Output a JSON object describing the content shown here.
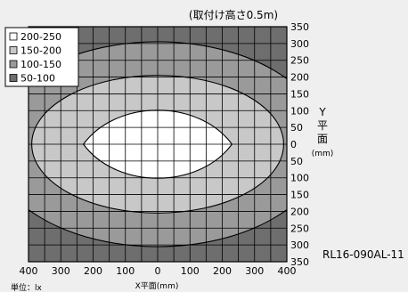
{
  "chart_data": {
    "type": "heatmap",
    "title": "(取付け高さ0.5m)",
    "figure_code": "RL16-090AL-11",
    "unit_label": "単位：lx",
    "xlabel": "X平面(mm)",
    "ylabel": [
      "Y",
      "平",
      "面",
      "(mm)"
    ],
    "x_ticks": [
      "400",
      "300",
      "200",
      "100",
      "0",
      "100",
      "200",
      "300",
      "400"
    ],
    "x_tick_values": [
      -400,
      -300,
      -200,
      -100,
      0,
      100,
      200,
      300,
      400
    ],
    "y_ticks": [
      "350",
      "300",
      "250",
      "200",
      "150",
      "100",
      "50",
      "0",
      "50",
      "100",
      "150",
      "200",
      "250",
      "300",
      "350"
    ],
    "y_tick_values": [
      350,
      300,
      250,
      200,
      150,
      100,
      50,
      0,
      -50,
      -100,
      -150,
      -200,
      -250,
      -300,
      -350
    ],
    "xlim": [
      -400,
      400
    ],
    "ylim": [
      -350,
      350
    ],
    "grid": true,
    "legend_position": "top-left",
    "legend": [
      {
        "label": "200-250",
        "color": "#ffffff"
      },
      {
        "label": "150-200",
        "color": "#c8c8c8"
      },
      {
        "label": "100-150",
        "color": "#9a9a9a"
      },
      {
        "label": "50-100",
        "color": "#6e6e6e"
      }
    ],
    "regions": [
      {
        "range": "50-100",
        "shape": "background",
        "color": "#6e6e6e"
      },
      {
        "range": "100-150",
        "shape": "ellipse",
        "cx": 0,
        "cy": 0,
        "rx": 520,
        "ry": 305,
        "color": "#9a9a9a"
      },
      {
        "range": "150-200",
        "shape": "ellipse",
        "cx": 0,
        "cy": 0,
        "rx": 390,
        "ry": 205,
        "color": "#c8c8c8"
      },
      {
        "range": "200-250",
        "shape": "lens",
        "cx": 0,
        "cy": 0,
        "half_width": 230,
        "half_height": 100,
        "color": "#ffffff"
      }
    ]
  }
}
